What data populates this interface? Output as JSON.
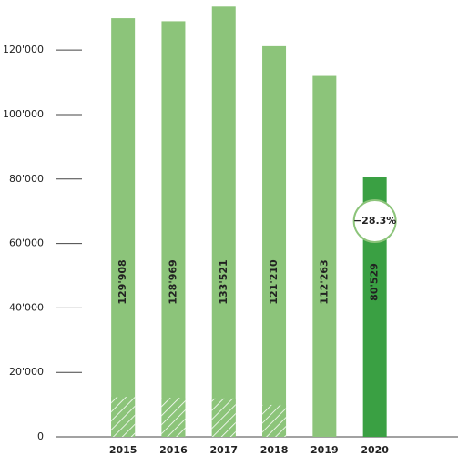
{
  "chart_data": {
    "type": "bar",
    "categories": [
      "2015",
      "2016",
      "2017",
      "2018",
      "2019",
      "2020"
    ],
    "values": [
      129908,
      128969,
      133521,
      121210,
      112263,
      80529
    ],
    "value_labels": [
      "129'908",
      "128'969",
      "133'521",
      "121'210",
      "112'263",
      "80'529"
    ],
    "hatched_values": [
      12400,
      12100,
      11900,
      9900,
      null,
      null
    ],
    "colors": [
      "#8cc47a",
      "#8cc47a",
      "#8cc47a",
      "#8cc47a",
      "#8cc47a",
      "#3aa043"
    ],
    "annotation": "−28.3%",
    "ylim": [
      0,
      134000
    ],
    "yticks": [
      0,
      {
        "value": 20000,
        "label": "20'000"
      },
      {
        "value": 40000,
        "label": "40'000"
      },
      {
        "value": 60000,
        "label": "60'000"
      },
      {
        "value": 80000,
        "label": "80'000"
      },
      {
        "value": 100000,
        "label": "100'000"
      },
      {
        "value": 120000,
        "label": "120'000"
      }
    ]
  }
}
